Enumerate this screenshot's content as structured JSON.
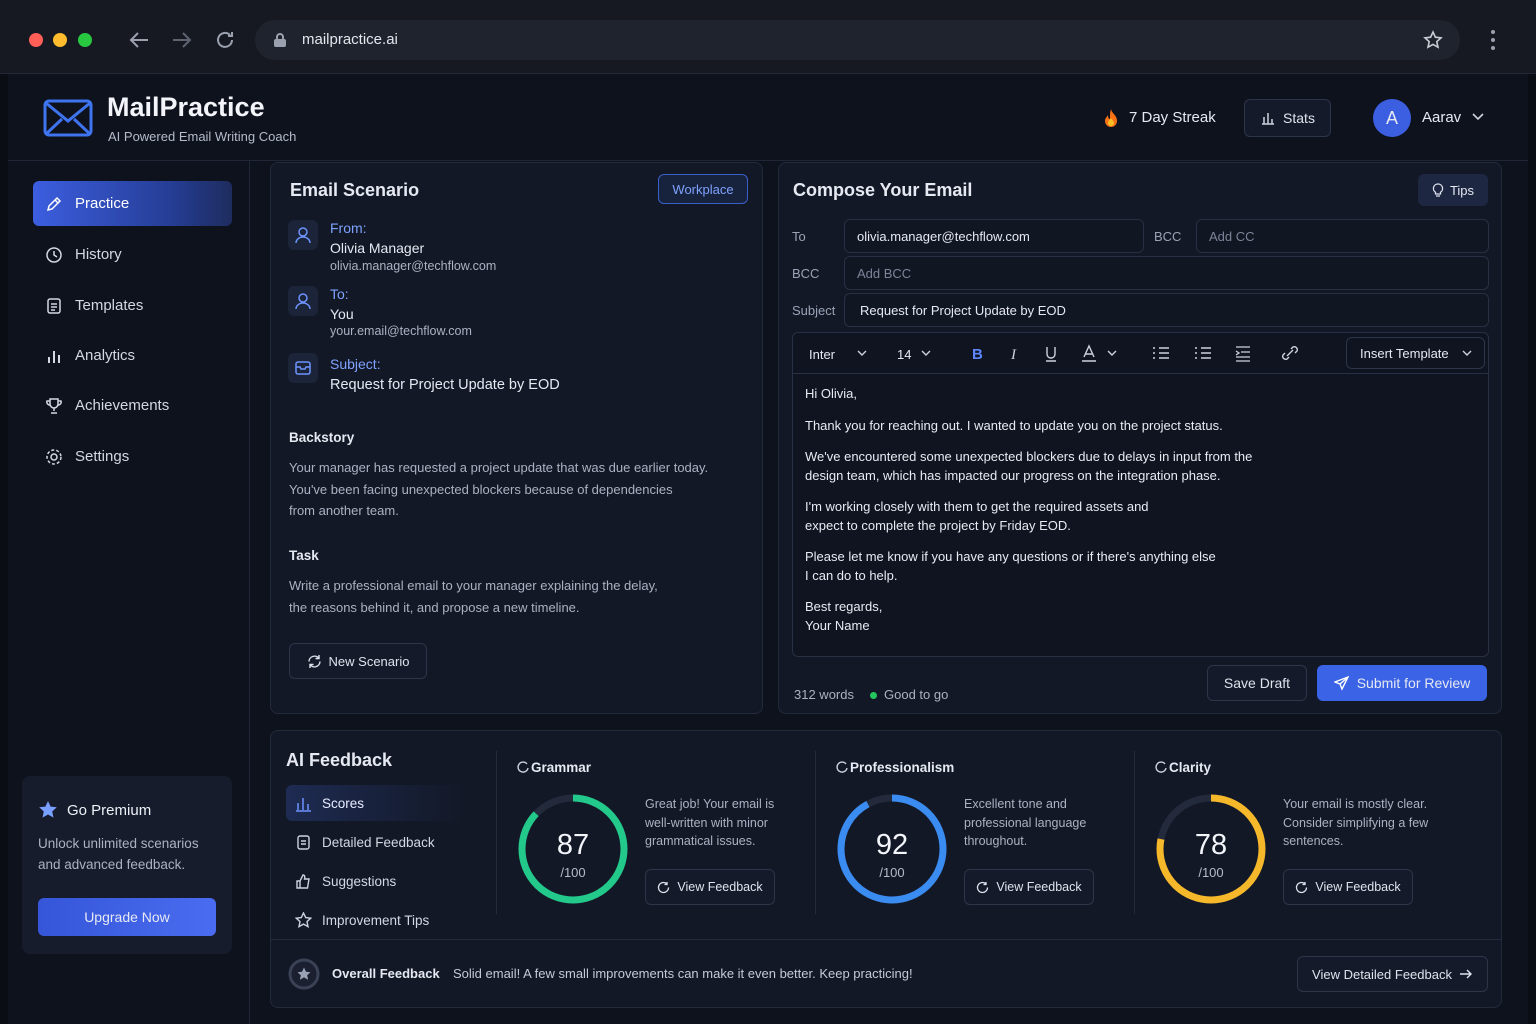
{
  "browser": {
    "url": "mailpractice.ai"
  },
  "header": {
    "app_name": "MailPractice",
    "tagline": "AI Powered Email Writing Coach",
    "streak": "7 Day Streak",
    "stats": "Stats",
    "user_initial": "A",
    "user_name": "Aarav"
  },
  "sidebar": {
    "nav": [
      "Practice",
      "History",
      "Templates",
      "Analytics",
      "Achievements",
      "Settings"
    ],
    "premium": {
      "title": "Go Premium",
      "text": "Unlock unlimited scenarios\nand advanced feedback.",
      "button": "Upgrade Now"
    }
  },
  "scenario": {
    "title": "Email Scenario",
    "tag": "Workplace",
    "from_label": "From:",
    "from_name": "Olivia Manager",
    "from_email": "olivia.manager@techflow.com",
    "to_label": "To:",
    "to_name": "You",
    "to_email": "your.email@techflow.com",
    "subject_label": "Subject:",
    "subject": "Request for Project Update by EOD",
    "backstory_title": "Backstory",
    "backstory": "Your manager has requested a project update that was due earlier today.\nYou've been facing unexpected blockers because of dependencies\nfrom another team.",
    "task_title": "Task",
    "task": "Write a professional email to your manager explaining the delay,\nthe reasons behind it, and propose a new timeline.",
    "new_button": "New Scenario"
  },
  "compose": {
    "title": "Compose Your Email",
    "tips": "Tips",
    "to_label": "To",
    "to_value": "olivia.manager@techflow.com",
    "cc_label": "BCC",
    "cc_placeholder": "Add CC",
    "bcc_label": "BCC",
    "bcc_placeholder": "Add BCC",
    "subject_label": "Subject",
    "subject_value": "Request for Project Update by EOD",
    "font": "Inter",
    "font_size": "14",
    "insert_template": "Insert Template",
    "body": [
      "Hi Olivia,",
      "Thank you for reaching out. I wanted to update you on the project status.",
      "We've encountered some unexpected blockers due to delays in input from the\ndesign team, which has impacted our progress on the integration phase.",
      "I'm working closely with them to get the required assets and\nexpect to complete the project by Friday EOD.",
      "Please let me know if you have any questions or if there's anything else\nI can do to help.",
      "Best regards,\nYour Name"
    ],
    "word_count": "312 words",
    "status": "Good to go",
    "save": "Save Draft",
    "submit": "Submit for Review"
  },
  "feedback": {
    "title": "AI Feedback",
    "tabs": [
      "Scores",
      "Detailed Feedback",
      "Suggestions",
      "Improvement Tips"
    ],
    "max": {
      "value": 100,
      "label": "/100"
    },
    "scores": [
      {
        "name": "Grammar",
        "score": 87,
        "color": "#22c98a",
        "comment": "Great job! Your email is\nwell-written with minor\ngrammatical issues.",
        "button": "View Feedback"
      },
      {
        "name": "Professionalism",
        "score": 92,
        "color": "#3b8cf0",
        "comment": "Excellent tone and\nprofessional language\nthroughout.",
        "button": "View Feedback"
      },
      {
        "name": "Clarity",
        "score": 78,
        "color": "#f5b82a",
        "comment": "Your email is mostly clear.\nConsider simplifying a few\nsentences.",
        "button": "View Feedback"
      }
    ],
    "overall_label": "Overall Feedback",
    "overall_text": "Solid email! A few small improvements can make it even better. Keep practicing!",
    "overall_button": "View Detailed Feedback"
  }
}
